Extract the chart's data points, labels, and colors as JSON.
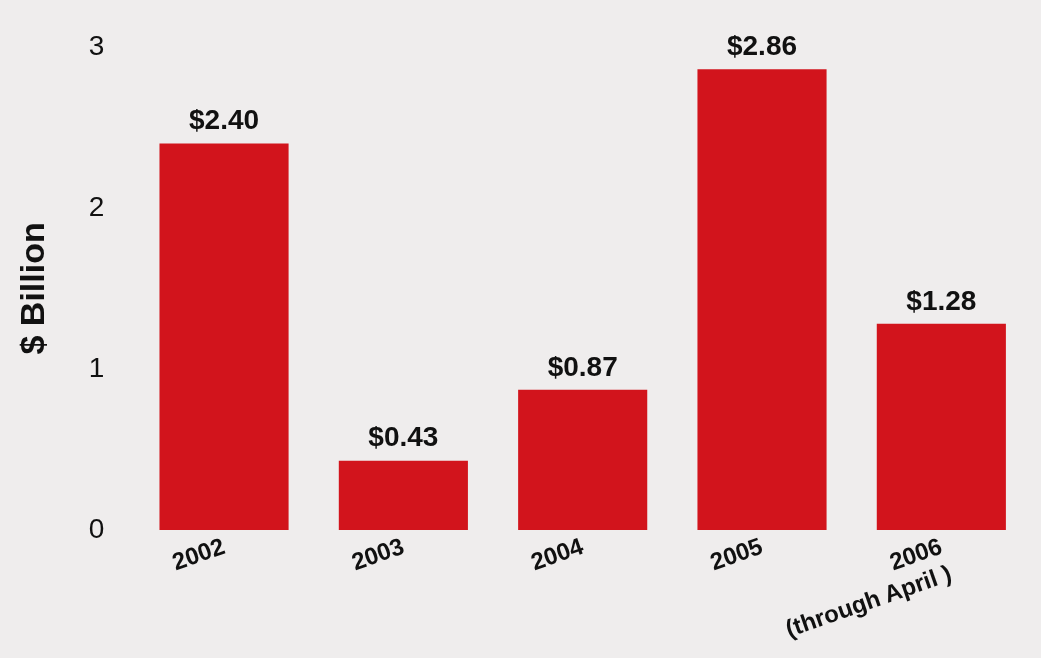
{
  "chart_data": {
    "type": "bar",
    "ylabel": "$ Billion",
    "categories": [
      "2002",
      "2003",
      "2004",
      "2005",
      "2006\n(through April )"
    ],
    "values": [
      2.4,
      0.43,
      0.87,
      2.86,
      1.28
    ],
    "value_labels": [
      "$2.40",
      "$0.43",
      "$0.87",
      "$2.86",
      "$1.28"
    ],
    "color": "#d2141c",
    "ylim": [
      0,
      3
    ],
    "yticks": [
      0,
      1,
      2,
      3
    ],
    "grid": false,
    "legend": false
  }
}
